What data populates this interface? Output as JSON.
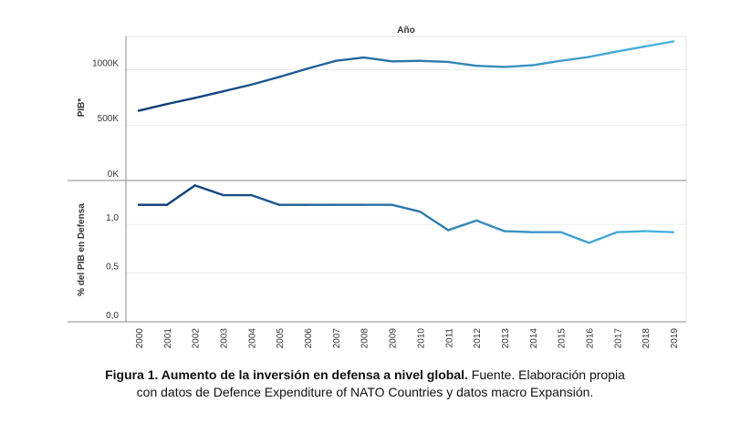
{
  "colors": {
    "series_start": "#0b3a73",
    "series_end": "#4bb3df",
    "axis": "#888888",
    "grid": "#ececec",
    "text": "#333333"
  },
  "chart_data": [
    {
      "type": "line",
      "xlabel": "Año",
      "ylabel": "PIB*",
      "x": [
        "2000",
        "2001",
        "2002",
        "2003",
        "2004",
        "2005",
        "2006",
        "2007",
        "2008",
        "2009",
        "2010",
        "2011",
        "2012",
        "2013",
        "2014",
        "2015",
        "2016",
        "2017",
        "2018",
        "2019"
      ],
      "values": [
        630,
        690,
        745,
        805,
        865,
        935,
        1010,
        1080,
        1110,
        1075,
        1080,
        1070,
        1035,
        1025,
        1040,
        1080,
        1115,
        1165,
        1210,
        1255
      ],
      "unit": "K",
      "ylim": [
        0,
        1300
      ],
      "yticks": [
        {
          "value": 0,
          "label": "0K"
        },
        {
          "value": 500,
          "label": "500K"
        },
        {
          "value": 1000,
          "label": "1000K"
        }
      ],
      "grid": true
    },
    {
      "type": "line",
      "ylabel": "% del PIB en Defensa",
      "x": [
        "2000",
        "2001",
        "2002",
        "2003",
        "2004",
        "2005",
        "2006",
        "2007",
        "2008",
        "2009",
        "2010",
        "2011",
        "2012",
        "2013",
        "2014",
        "2015",
        "2016",
        "2017",
        "2018",
        "2019"
      ],
      "values": [
        1.2,
        1.2,
        1.4,
        1.3,
        1.3,
        1.2,
        1.2,
        1.2,
        1.2,
        1.2,
        1.13,
        0.94,
        1.04,
        0.93,
        0.92,
        0.92,
        0.81,
        0.92,
        0.93,
        0.92
      ],
      "ylim": [
        0,
        1.45
      ],
      "yticks": [
        {
          "value": 0,
          "label": "0,0"
        },
        {
          "value": 0.5,
          "label": "0,5"
        },
        {
          "value": 1.0,
          "label": "1,0"
        }
      ],
      "grid": true
    }
  ],
  "caption": {
    "bold": "Figura 1. Aumento de la inversión en defensa a nivel global.",
    "rest": " Fuente. Elaboración propia",
    "line2": "con datos de Defence Expenditure of NATO Countries y datos macro Expansión."
  }
}
